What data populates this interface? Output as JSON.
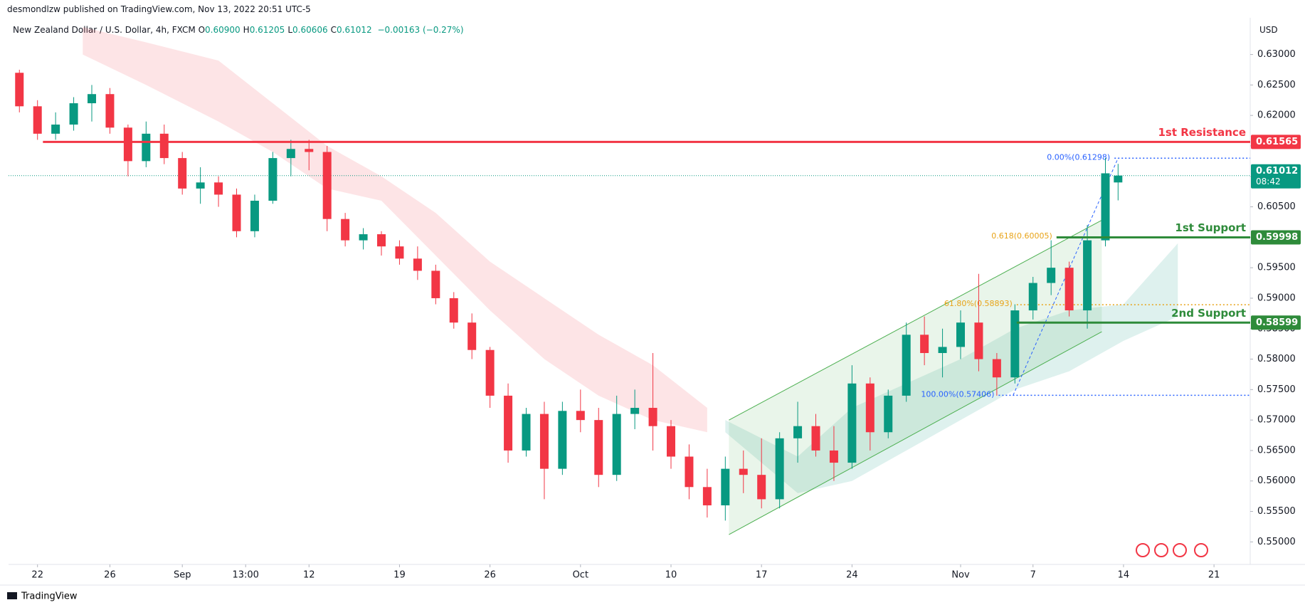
{
  "header": {
    "author_line": "desmondlzw published on TradingView.com, Nov 13, 2022 20:51 UTC-5",
    "symbol": "New Zealand Dollar / U.S. Dollar, 4h, FXCM",
    "ohlc": [
      {
        "key": "O",
        "value": "0.60900"
      },
      {
        "key": "H",
        "value": "0.61205"
      },
      {
        "key": "L",
        "value": "0.60606"
      },
      {
        "key": "C",
        "value": "0.61012"
      }
    ],
    "change": "−0.00163 (−0.27%)",
    "currency": "USD"
  },
  "footer": {
    "brand": "TradingView"
  },
  "chart_data": {
    "type": "candlestick",
    "up_color": "#089981",
    "down_color": "#f23645",
    "xlim": [
      -1.6,
      67
    ],
    "ylim": [
      0.5463,
      0.6355
    ],
    "xticks": [
      {
        "value": 0,
        "label": "22"
      },
      {
        "value": 4,
        "label": "26"
      },
      {
        "value": 8,
        "label": "Sep"
      },
      {
        "value": 11.5,
        "label": "13:00"
      },
      {
        "value": 15,
        "label": "12"
      },
      {
        "value": 20,
        "label": "19"
      },
      {
        "value": 25,
        "label": "26"
      },
      {
        "value": 30,
        "label": "Oct"
      },
      {
        "value": 35,
        "label": "10"
      },
      {
        "value": 40,
        "label": "17"
      },
      {
        "value": 45,
        "label": "24"
      },
      {
        "value": 51,
        "label": "Nov"
      },
      {
        "value": 55,
        "label": "7"
      },
      {
        "value": 60,
        "label": "14"
      },
      {
        "value": 65,
        "label": "21"
      }
    ],
    "yticks": [
      {
        "value": 0.55,
        "label": "0.55000"
      },
      {
        "value": 0.555,
        "label": "0.55500"
      },
      {
        "value": 0.56,
        "label": "0.56000"
      },
      {
        "value": 0.565,
        "label": "0.56500"
      },
      {
        "value": 0.57,
        "label": "0.57000"
      },
      {
        "value": 0.575,
        "label": "0.57500"
      },
      {
        "value": 0.58,
        "label": "0.58000"
      },
      {
        "value": 0.585,
        "label": "0.58500"
      },
      {
        "value": 0.59,
        "label": "0.59000"
      },
      {
        "value": 0.595,
        "label": "0.59500"
      },
      {
        "value": 0.6,
        "label": "0.60000"
      },
      {
        "value": 0.605,
        "label": "0.60500"
      },
      {
        "value": 0.61,
        "label": "0.61000"
      },
      {
        "value": 0.615,
        "label": "0.61500"
      },
      {
        "value": 0.62,
        "label": "0.62000"
      },
      {
        "value": 0.625,
        "label": "0.62500"
      },
      {
        "value": 0.63,
        "label": "0.63000"
      }
    ],
    "x": [
      -1,
      0,
      1,
      2,
      3,
      4,
      5,
      6,
      7,
      8,
      9,
      10,
      11,
      12,
      13,
      14,
      15,
      16,
      17,
      18,
      19,
      20,
      21,
      22,
      23,
      24,
      25,
      26,
      27,
      28,
      29,
      30,
      31,
      32,
      33,
      34,
      35,
      36,
      37,
      38,
      39,
      40,
      41,
      42,
      43,
      44,
      45,
      46,
      47,
      48,
      49,
      50,
      51,
      52,
      53,
      54,
      55,
      56,
      57,
      58,
      59,
      59.7
    ],
    "open": [
      0.627,
      0.6215,
      0.617,
      0.6185,
      0.622,
      0.6235,
      0.618,
      0.6125,
      0.617,
      0.613,
      0.608,
      0.609,
      0.607,
      0.601,
      0.606,
      0.613,
      0.6145,
      0.614,
      0.603,
      0.5995,
      0.6005,
      0.5985,
      0.5965,
      0.5945,
      0.59,
      0.586,
      0.5815,
      0.574,
      0.565,
      0.571,
      0.562,
      0.5715,
      0.57,
      0.561,
      0.571,
      0.572,
      0.569,
      0.564,
      0.559,
      0.556,
      0.562,
      0.561,
      0.557,
      0.567,
      0.569,
      0.565,
      0.563,
      0.576,
      0.568,
      0.574,
      0.584,
      0.581,
      0.582,
      0.586,
      0.58,
      0.577,
      0.588,
      0.5925,
      0.595,
      0.588,
      0.5995,
      0.609
    ],
    "high": [
      0.6275,
      0.6225,
      0.6205,
      0.623,
      0.625,
      0.6245,
      0.6185,
      0.619,
      0.6185,
      0.614,
      0.6115,
      0.61,
      0.608,
      0.607,
      0.614,
      0.616,
      0.616,
      0.615,
      0.604,
      0.6015,
      0.601,
      0.5995,
      0.5985,
      0.5955,
      0.591,
      0.5875,
      0.582,
      0.576,
      0.572,
      0.573,
      0.573,
      0.575,
      0.572,
      0.574,
      0.575,
      0.581,
      0.57,
      0.566,
      0.562,
      0.564,
      0.565,
      0.567,
      0.568,
      0.573,
      0.571,
      0.569,
      0.579,
      0.577,
      0.575,
      0.586,
      0.587,
      0.585,
      0.588,
      0.594,
      0.581,
      0.589,
      0.5935,
      0.5995,
      0.596,
      0.602,
      0.613,
      0.61205
    ],
    "low": [
      0.6205,
      0.616,
      0.616,
      0.6175,
      0.619,
      0.617,
      0.61,
      0.6115,
      0.612,
      0.607,
      0.6055,
      0.605,
      0.6,
      0.6,
      0.6055,
      0.61,
      0.611,
      0.601,
      0.5985,
      0.598,
      0.597,
      0.5955,
      0.593,
      0.589,
      0.585,
      0.58,
      0.572,
      0.563,
      0.564,
      0.557,
      0.561,
      0.568,
      0.559,
      0.56,
      0.5685,
      0.565,
      0.562,
      0.557,
      0.554,
      0.5535,
      0.558,
      0.5555,
      0.5555,
      0.563,
      0.564,
      0.56,
      0.562,
      0.565,
      0.567,
      0.573,
      0.579,
      0.577,
      0.58,
      0.578,
      0.574,
      0.576,
      0.5865,
      0.5905,
      0.587,
      0.585,
      0.5985,
      0.60606
    ],
    "close": [
      0.6215,
      0.617,
      0.6185,
      0.622,
      0.6235,
      0.618,
      0.6125,
      0.617,
      0.613,
      0.608,
      0.609,
      0.607,
      0.601,
      0.606,
      0.613,
      0.6145,
      0.614,
      0.603,
      0.5995,
      0.6005,
      0.5985,
      0.5965,
      0.5945,
      0.59,
      0.586,
      0.5815,
      0.574,
      0.565,
      0.571,
      0.562,
      0.5715,
      0.57,
      0.561,
      0.571,
      0.572,
      0.569,
      0.564,
      0.559,
      0.556,
      0.562,
      0.561,
      0.557,
      0.567,
      0.569,
      0.565,
      0.563,
      0.576,
      0.568,
      0.574,
      0.584,
      0.581,
      0.582,
      0.586,
      0.58,
      0.577,
      0.588,
      0.5925,
      0.595,
      0.588,
      0.5995,
      0.6105,
      0.61012
    ],
    "cloud": [
      {
        "color": "#f2364522",
        "x": [
          2.5,
          6,
          10,
          13,
          16,
          19,
          22,
          25,
          28,
          31,
          34,
          37
        ],
        "top": [
          0.6345,
          0.632,
          0.629,
          0.622,
          0.615,
          0.61,
          0.604,
          0.596,
          0.59,
          0.584,
          0.579,
          0.572
        ],
        "bottom": [
          0.63,
          0.625,
          0.619,
          0.614,
          0.608,
          0.606,
          0.597,
          0.588,
          0.58,
          0.574,
          0.57,
          0.568
        ]
      },
      {
        "color": "#08998122",
        "x": [
          38,
          42,
          45,
          48,
          51,
          54,
          57,
          60,
          63
        ],
        "top": [
          0.57,
          0.564,
          0.572,
          0.576,
          0.58,
          0.585,
          0.588,
          0.589,
          0.599
        ],
        "bottom": [
          0.568,
          0.558,
          0.56,
          0.565,
          0.57,
          0.575,
          0.578,
          0.583,
          0.587
        ]
      }
    ],
    "channel": {
      "color": "#4caf50",
      "x": [
        38.2,
        58.8
      ],
      "lower": [
        0.5512,
        0.5845
      ],
      "upper": [
        0.57,
        0.6028
      ]
    },
    "fib_trend": {
      "color": "#2962ff",
      "x": [
        53.9,
        59.7
      ],
      "y": [
        0.57406,
        0.61298
      ]
    },
    "fib": [
      {
        "label": "0.00%(0.61298)",
        "value": 0.61298,
        "x0": 59.5,
        "color": "#2962ff"
      },
      {
        "label": "0.618(0.60005)",
        "value": 0.60005,
        "x0": 56.3,
        "color": "#e8a317"
      },
      {
        "label": "61.80%(0.58893)",
        "value": 0.58893,
        "x0": 54.1,
        "color": "#e8a317"
      },
      {
        "label": "100.00%(0.57406)",
        "value": 0.57406,
        "x0": 53.1,
        "color": "#2962ff"
      }
    ],
    "levels": [
      {
        "name": "1st Resistance",
        "value": 0.61565,
        "x0": 0.3,
        "color": "#f23645"
      },
      {
        "name": "1st Support",
        "value": 0.59998,
        "x0": 56.3,
        "color": "#2e8b3a"
      },
      {
        "name": "2nd Support",
        "value": 0.58599,
        "x0": 54.1,
        "color": "#2e8b3a"
      }
    ],
    "last": {
      "value": 0.61012,
      "countdown": "08:42",
      "color": "#089981"
    }
  }
}
